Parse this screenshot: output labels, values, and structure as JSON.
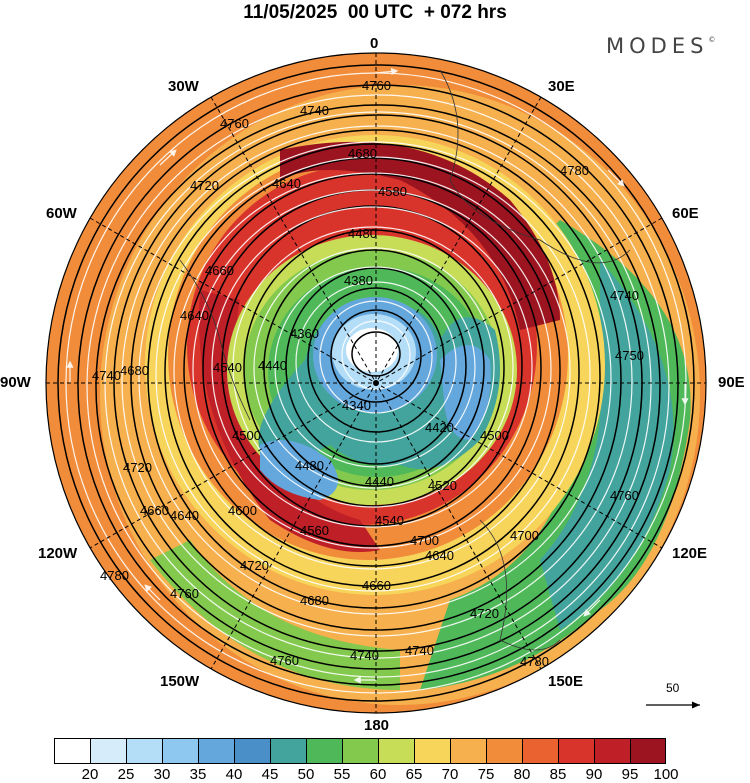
{
  "title": "11/05/2025  00 UTC  + 072 hrs",
  "logo": "MODES",
  "logo_mark": "©",
  "longitude_labels": [
    {
      "text": "0",
      "key": "n"
    },
    {
      "text": "30E",
      "key": "ne1"
    },
    {
      "text": "60E",
      "key": "ne2"
    },
    {
      "text": "90E",
      "key": "e"
    },
    {
      "text": "120E",
      "key": "se1"
    },
    {
      "text": "150E",
      "key": "se2"
    },
    {
      "text": "180",
      "key": "s"
    },
    {
      "text": "150W",
      "key": "sw2"
    },
    {
      "text": "120W",
      "key": "sw1"
    },
    {
      "text": "90W",
      "key": "w"
    },
    {
      "text": "60W",
      "key": "nw2"
    },
    {
      "text": "30W",
      "key": "nw1"
    }
  ],
  "reference_vector": {
    "value": "50"
  },
  "contour_labels": [
    "4760",
    "4740",
    "4760",
    "4780",
    "4720",
    "4680",
    "4640",
    "4580",
    "4480",
    "4380",
    "4360",
    "4340",
    "4440",
    "4540",
    "4600",
    "4560",
    "4500",
    "4480",
    "4440",
    "4520",
    "4540",
    "4640",
    "4660",
    "4680",
    "4700",
    "4760",
    "4780",
    "4740",
    "4720",
    "4660",
    "4500",
    "4420",
    "4640",
    "4750",
    "4740",
    "4760",
    "4700",
    "4740",
    "4720",
    "4780",
    "4660",
    "4640",
    "4680",
    "4720",
    "4760",
    "4740"
  ],
  "colorbar": {
    "ticks": [
      "20",
      "25",
      "30",
      "35",
      "40",
      "45",
      "50",
      "55",
      "60",
      "65",
      "70",
      "75",
      "80",
      "85",
      "90",
      "95",
      "100"
    ],
    "colors": [
      "#ffffff",
      "#d6ecfb",
      "#b4def8",
      "#8ec8f0",
      "#63a7dc",
      "#4a8fc8",
      "#42a49c",
      "#4fb95a",
      "#82c94e",
      "#c7dd58",
      "#f7d55a",
      "#f6b04d",
      "#f18d3a",
      "#ea6230",
      "#d9342c",
      "#bf1f26",
      "#9b1420"
    ]
  }
}
